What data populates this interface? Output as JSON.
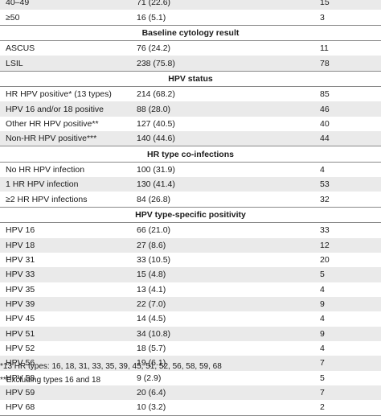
{
  "rows": [
    {
      "type": "data",
      "label": "40–49",
      "n": "71 (22.6)",
      "v": "15"
    },
    {
      "type": "data",
      "label": "≥50",
      "n": "16 (5.1)",
      "v": "3"
    },
    {
      "type": "section",
      "label": "Baseline cytology result"
    },
    {
      "type": "data",
      "label": "ASCUS",
      "n": "76 (24.2)",
      "v": "11"
    },
    {
      "type": "data",
      "label": "LSIL",
      "n": "238 (75.8)",
      "v": "78"
    },
    {
      "type": "section",
      "label": "HPV status"
    },
    {
      "type": "data",
      "label": "HR HPV positive* (13 types)",
      "n": "214 (68.2)",
      "v": "85"
    },
    {
      "type": "data",
      "label": "HPV 16 and/or 18 positive",
      "n": "88 (28.0)",
      "v": "46"
    },
    {
      "type": "data",
      "label": "Other HR HPV positive**",
      "n": "127 (40.5)",
      "v": "40"
    },
    {
      "type": "data",
      "label": "Non-HR HPV positive***",
      "n": "140 (44.6)",
      "v": "44"
    },
    {
      "type": "section",
      "label": "HR type co-infections"
    },
    {
      "type": "data",
      "label": "No HR HPV infection",
      "n": "100 (31.9)",
      "v": "4"
    },
    {
      "type": "data",
      "label": "1 HR HPV infection",
      "n": "130 (41.4)",
      "v": "53"
    },
    {
      "type": "data",
      "label": "≥2 HR HPV infections",
      "n": "84 (26.8)",
      "v": "32"
    },
    {
      "type": "section",
      "label": "HPV type-specific positivity"
    },
    {
      "type": "data",
      "label": "HPV 16",
      "n": "66 (21.0)",
      "v": "33"
    },
    {
      "type": "data",
      "label": "HPV 18",
      "n": "27 (8.6)",
      "v": "12"
    },
    {
      "type": "data",
      "label": "HPV 31",
      "n": "33 (10.5)",
      "v": "20"
    },
    {
      "type": "data",
      "label": "HPV 33",
      "n": "15 (4.8)",
      "v": "5"
    },
    {
      "type": "data",
      "label": "HPV 35",
      "n": "13 (4.1)",
      "v": "4"
    },
    {
      "type": "data",
      "label": "HPV 39",
      "n": "22 (7.0)",
      "v": "9"
    },
    {
      "type": "data",
      "label": "HPV 45",
      "n": "14 (4.5)",
      "v": "4"
    },
    {
      "type": "data",
      "label": "HPV 51",
      "n": "34 (10.8)",
      "v": "9"
    },
    {
      "type": "data",
      "label": "HPV 52",
      "n": "18 (5.7)",
      "v": "4"
    },
    {
      "type": "data",
      "label": "HPV 56",
      "n": "19 (6.1)",
      "v": "7"
    },
    {
      "type": "data",
      "label": "HPV 58",
      "n": "9 (2.9)",
      "v": "5"
    },
    {
      "type": "data",
      "label": "HPV 59",
      "n": "20 (6.4)",
      "v": "7"
    },
    {
      "type": "data",
      "label": "HPV 68",
      "n": "10 (3.2)",
      "v": "2"
    }
  ],
  "footnotes": [
    "*13 HR types: 16, 18, 31, 33, 35, 39, 45, 51, 52, 56, 58, 59, 68",
    "**Excluding types 16 and 18"
  ]
}
